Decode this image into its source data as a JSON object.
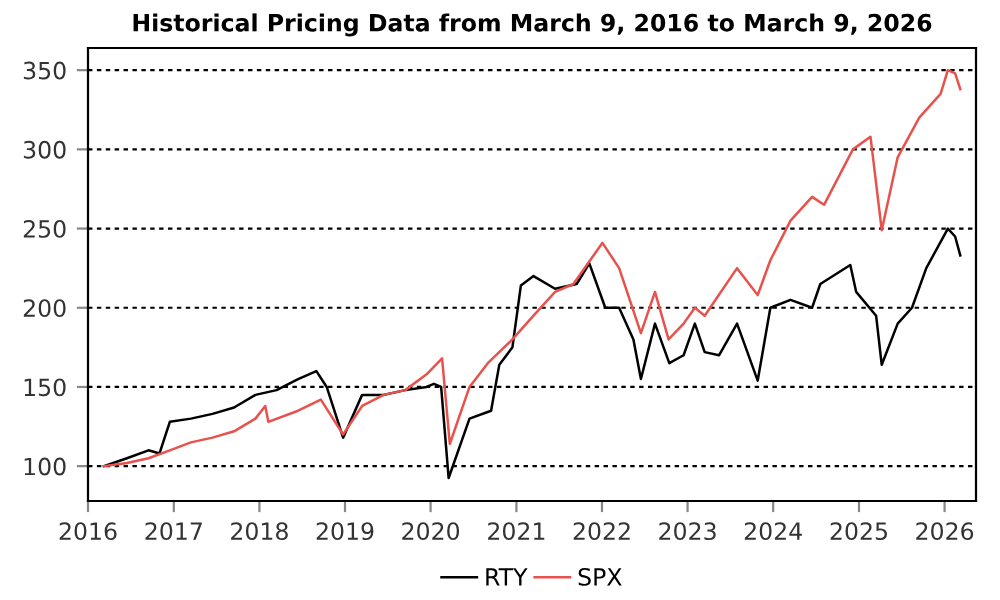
{
  "chart_data": {
    "type": "line",
    "title": "Historical Pricing Data from March 9, 2016 to March 9, 2026",
    "xlim": [
      "2016-01-01",
      "2026-05-15"
    ],
    "xticks": [
      {
        "value": "2016-01-01",
        "label": "2016"
      },
      {
        "value": "2017-01-01",
        "label": "2017"
      },
      {
        "value": "2018-01-01",
        "label": "2018"
      },
      {
        "value": "2019-01-01",
        "label": "2019"
      },
      {
        "value": "2020-01-01",
        "label": "2020"
      },
      {
        "value": "2021-01-01",
        "label": "2021"
      },
      {
        "value": "2022-01-01",
        "label": "2022"
      },
      {
        "value": "2023-01-01",
        "label": "2023"
      },
      {
        "value": "2024-01-01",
        "label": "2024"
      },
      {
        "value": "2025-01-01",
        "label": "2025"
      },
      {
        "value": "2026-01-01",
        "label": "2026"
      }
    ],
    "ylim": [
      78,
      364
    ],
    "yticks": [
      100,
      150,
      200,
      250,
      300,
      350
    ],
    "grid": "y",
    "legend": "bottom",
    "line_style": "solid",
    "marker": "none",
    "series": [
      {
        "name": "RTY",
        "color": "#000000",
        "x": [
          "2016-03-09",
          "2016-06-15",
          "2016-09-15",
          "2016-11-01",
          "2016-12-15",
          "2017-03-15",
          "2017-06-15",
          "2017-09-15",
          "2017-12-15",
          "2018-03-15",
          "2018-06-15",
          "2018-09-01",
          "2018-10-15",
          "2018-12-24",
          "2019-03-15",
          "2019-06-15",
          "2019-09-15",
          "2019-12-15",
          "2020-01-15",
          "2020-02-15",
          "2020-03-18",
          "2020-06-15",
          "2020-09-15",
          "2020-10-20",
          "2020-12-15",
          "2021-01-20",
          "2021-03-15",
          "2021-06-15",
          "2021-09-15",
          "2021-11-08",
          "2022-01-15",
          "2022-03-15",
          "2022-05-15",
          "2022-06-16",
          "2022-08-15",
          "2022-10-15",
          "2022-12-15",
          "2023-02-01",
          "2023-03-15",
          "2023-05-15",
          "2023-07-31",
          "2023-10-27",
          "2023-12-20",
          "2024-03-15",
          "2024-06-15",
          "2024-07-20",
          "2024-11-25",
          "2024-12-20",
          "2025-03-15",
          "2025-04-08",
          "2025-06-15",
          "2025-08-15",
          "2025-10-15",
          "2026-01-15",
          "2026-02-15",
          "2026-03-09"
        ],
        "values": [
          100,
          105,
          110,
          108,
          128,
          130,
          133,
          137,
          145,
          148,
          155,
          160,
          150,
          118,
          145,
          145,
          148,
          150,
          152,
          150,
          92.5,
          130,
          135,
          164,
          175,
          214,
          220,
          212,
          215,
          228,
          200,
          200,
          180,
          155,
          190,
          165,
          170,
          190,
          172,
          170,
          190,
          154,
          200,
          205,
          200,
          215,
          227,
          210,
          195,
          164,
          190,
          200,
          225,
          250,
          245,
          233
        ]
      },
      {
        "name": "SPX",
        "color": "#e8524d",
        "x": [
          "2016-03-09",
          "2016-06-15",
          "2016-09-15",
          "2016-12-15",
          "2017-03-15",
          "2017-06-15",
          "2017-09-15",
          "2017-12-15",
          "2018-01-26",
          "2018-02-08",
          "2018-06-15",
          "2018-09-20",
          "2018-12-24",
          "2019-03-15",
          "2019-06-15",
          "2019-09-15",
          "2019-12-15",
          "2020-02-19",
          "2020-03-23",
          "2020-06-15",
          "2020-09-01",
          "2020-12-15",
          "2021-03-15",
          "2021-06-15",
          "2021-09-01",
          "2022-01-03",
          "2022-03-15",
          "2022-06-16",
          "2022-08-15",
          "2022-10-12",
          "2022-12-15",
          "2023-02-01",
          "2023-03-15",
          "2023-07-31",
          "2023-10-27",
          "2023-12-20",
          "2024-03-15",
          "2024-06-15",
          "2024-08-05",
          "2024-12-06",
          "2025-02-19",
          "2025-04-08",
          "2025-06-15",
          "2025-09-15",
          "2025-12-15",
          "2026-01-15",
          "2026-02-15",
          "2026-03-09"
        ],
        "values": [
          100,
          102,
          105,
          110,
          115,
          118,
          122,
          130,
          138,
          128,
          135,
          142,
          120,
          138,
          145,
          148,
          158,
          168,
          114,
          150,
          165,
          180,
          195,
          210,
          215,
          241,
          225,
          184,
          210,
          180,
          190,
          200,
          195,
          225,
          208,
          230,
          255,
          270,
          265,
          300,
          308,
          249,
          295,
          320,
          335,
          350,
          348,
          338
        ]
      }
    ]
  }
}
